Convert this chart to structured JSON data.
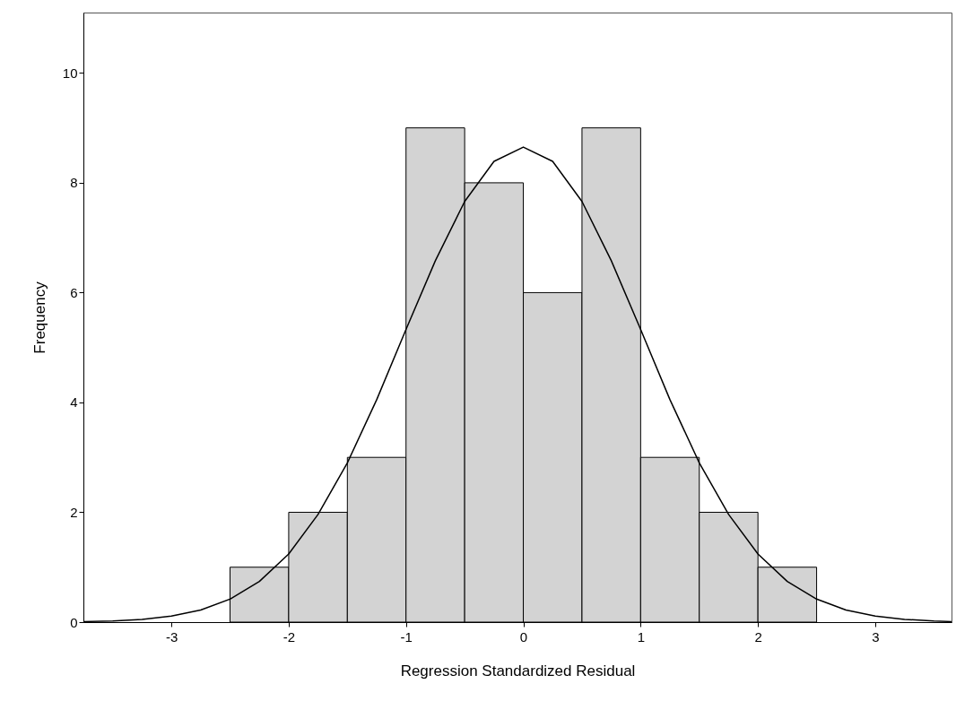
{
  "chart_data": {
    "type": "histogram",
    "xlabel": "Regression Standardized Residual",
    "ylabel": "Frequency",
    "bins": [
      -2.5,
      -2,
      -1.5,
      -1,
      -0.5,
      0,
      0.5,
      1,
      1.5,
      2,
      2.5
    ],
    "series": [
      {
        "color": "#d3d3d3",
        "values": [
          1,
          2,
          3,
          9,
          8,
          6,
          9,
          3,
          2,
          1
        ]
      },
      {
        "type": "line",
        "color": "#000000",
        "x": [
          -3.75,
          -3.5,
          -3.25,
          -3,
          -2.75,
          -2.5,
          -2.25,
          -2,
          -1.75,
          -1.5,
          -1.25,
          -1,
          -0.75,
          -0.5,
          -0.25,
          0,
          0.25,
          0.5,
          0.75,
          1,
          1.25,
          1.5,
          1.75,
          2,
          2.25,
          2.5,
          2.75,
          3,
          3.25,
          3.5,
          3.65
        ],
        "values": [
          0.01,
          0.02,
          0.05,
          0.11,
          0.22,
          0.42,
          0.74,
          1.24,
          1.96,
          2.9,
          4.05,
          5.33,
          6.58,
          7.66,
          8.39,
          8.65,
          8.39,
          7.66,
          6.58,
          5.33,
          4.05,
          2.9,
          1.96,
          1.24,
          0.74,
          0.42,
          0.22,
          0.11,
          0.05,
          0.02,
          0.01
        ]
      }
    ],
    "xlim": [
      -3.75,
      3.65
    ],
    "ylim": [
      0,
      11.1
    ],
    "xticks": [
      -3,
      -2,
      -1,
      0,
      1,
      2,
      3
    ],
    "yticks": [
      0,
      2,
      4,
      6,
      8,
      10
    ]
  }
}
